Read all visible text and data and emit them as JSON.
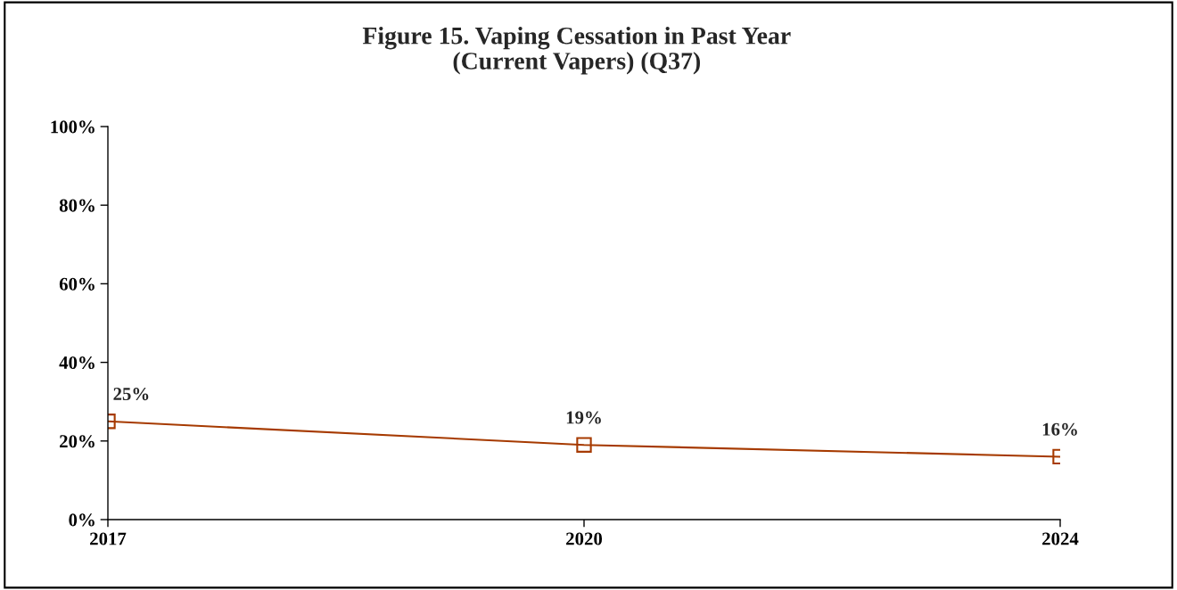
{
  "chart_data": {
    "type": "line",
    "title": "Figure 15. Vaping Cessation in Past Year\n(Current Vapers) (Q37)",
    "categories": [
      "2017",
      "2020",
      "2024"
    ],
    "series": [
      {
        "color": "#a63a00",
        "values": [
          25,
          19,
          16
        ],
        "value_labels": [
          "25%",
          "19%",
          "16%"
        ]
      }
    ],
    "ylim": [
      0,
      100
    ],
    "yticks": [
      {
        "value": 0,
        "label": "0%"
      },
      {
        "value": 20,
        "label": "20%"
      },
      {
        "value": 40,
        "label": "40%"
      },
      {
        "value": 60,
        "label": "60%"
      },
      {
        "value": 80,
        "label": "80%"
      },
      {
        "value": 100,
        "label": "100%"
      }
    ],
    "marker": "square",
    "line_style": "solid",
    "grid": false,
    "legend": false
  }
}
